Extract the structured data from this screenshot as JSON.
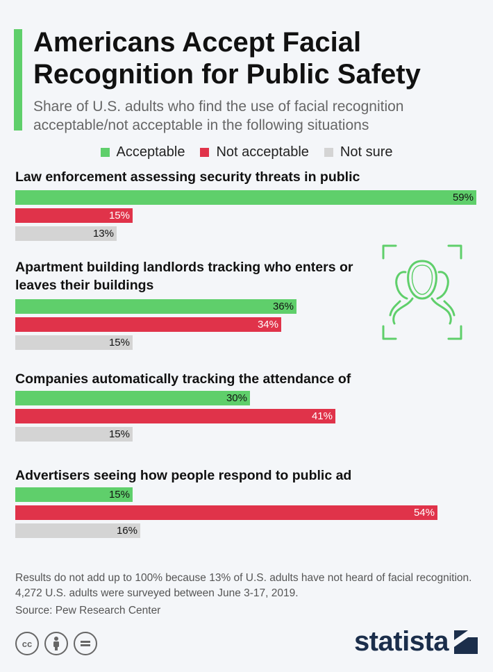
{
  "header": {
    "title": "Americans Accept Facial Recognition for Public Safety",
    "subtitle": "Share of U.S. adults who find the use of facial recognition acceptable/not acceptable in the following situations"
  },
  "colors": {
    "accent": "#5fcf6b",
    "acceptable": "#5fcf6b",
    "not_acceptable": "#e0334a",
    "not_sure": "#d4d4d4",
    "brand": "#1b2e4b"
  },
  "chart_data": {
    "type": "bar",
    "orientation": "horizontal",
    "legend": {
      "placement": "top-center"
    },
    "series": [
      {
        "name": "Acceptable",
        "values": [
          59,
          36,
          30,
          15
        ]
      },
      {
        "name": "Not acceptable",
        "values": [
          15,
          34,
          41,
          54
        ]
      },
      {
        "name": "Not sure",
        "values": [
          13,
          15,
          15,
          16
        ]
      }
    ],
    "categories": [
      "Law enforcement assessing security threats in public spaces",
      "Apartment building landlords tracking who enters or leaves their buildings",
      "Companies automatically tracking the attendance of their employees",
      "Advertisers seeing how people respond to public ad displays"
    ],
    "unit": "%",
    "xlim": [
      0,
      59
    ],
    "grid": false
  },
  "footer": {
    "note": "Results do not add up to 100% because 13% of U.S. adults have not heard of facial recognition. 4,272 U.S. adults were surveyed between June 3-17, 2019.",
    "source": "Source: Pew Research Center",
    "brand": "statista",
    "license_icons": [
      "cc-icon",
      "attribution-icon",
      "no-derivatives-icon"
    ]
  },
  "decoration": {
    "icon": "facial-recognition-icon"
  }
}
